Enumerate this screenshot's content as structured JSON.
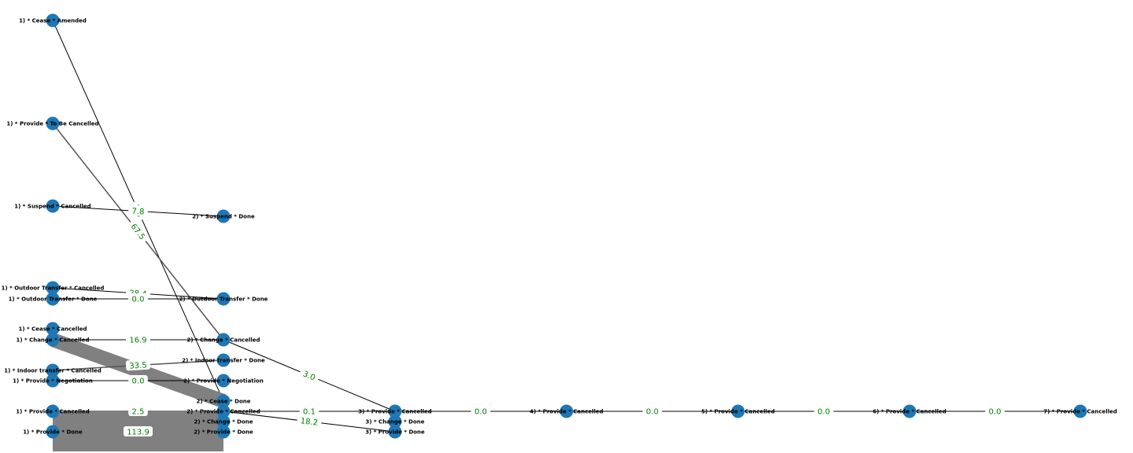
{
  "colors": {
    "node": "#1f77b4",
    "edge": "#000000",
    "label": "#008000",
    "thick_edge": "#808080"
  },
  "nodes": [
    {
      "id": "n1",
      "label": "1) * Cease * Amended"
    },
    {
      "id": "n2",
      "label": "1) * Provide * To Be Cancelled"
    },
    {
      "id": "n3",
      "label": "1) * Suspend * Cancelled"
    },
    {
      "id": "n4",
      "label": "1) * Outdoor Transfer * Cancelled"
    },
    {
      "id": "n5",
      "label": "1) * Outdoor Transfer * Done"
    },
    {
      "id": "n6",
      "label": "1) * Cease * Cancelled"
    },
    {
      "id": "n7",
      "label": "1) * Change * Cancelled"
    },
    {
      "id": "n8",
      "label": "1) * Indoor transfer * Cancelled"
    },
    {
      "id": "n9",
      "label": "1) * Provide * Negotiation"
    },
    {
      "id": "n10",
      "label": "1) * Provide * Cancelled"
    },
    {
      "id": "n11",
      "label": "1) * Provide * Done"
    },
    {
      "id": "m1",
      "label": "2) * Suspend * Done"
    },
    {
      "id": "m2",
      "label": "2) * Outdoor Transfer * Done"
    },
    {
      "id": "m3",
      "label": "2) * Change * Cancelled"
    },
    {
      "id": "m4",
      "label": "2) * Indoor transfer * Done"
    },
    {
      "id": "m5",
      "label": "2) * Provide * Negotiation"
    },
    {
      "id": "m6",
      "label": "2) * Cease * Done"
    },
    {
      "id": "m7",
      "label": "2) * Provide * Cancelled"
    },
    {
      "id": "m8",
      "label": "2) * Change * Done"
    },
    {
      "id": "m9",
      "label": "2) * Provide * Done"
    },
    {
      "id": "p1",
      "label": "3) * Provide * Cancelled"
    },
    {
      "id": "p2",
      "label": "3) * Change * Done"
    },
    {
      "id": "p3",
      "label": "3) * Provide * Done"
    },
    {
      "id": "q1",
      "label": "4) * Provide * Cancelled"
    },
    {
      "id": "r1",
      "label": "5) * Provide * Cancelled"
    },
    {
      "id": "s1",
      "label": "6) * Provide * Cancelled"
    },
    {
      "id": "t1",
      "label": "7) * Provide * Cancelled"
    }
  ],
  "edges": [
    {
      "from": "n1",
      "to": "m6",
      "label": "7.8",
      "weight": 1
    },
    {
      "from": "n2",
      "to": "m3",
      "label": "67.5",
      "weight": 1.5
    },
    {
      "from": "n3",
      "to": "m1",
      "label": "7.8",
      "weight": 1
    },
    {
      "from": "n4",
      "to": "m2",
      "label": "28.4",
      "weight": 1
    },
    {
      "from": "n5",
      "to": "m2",
      "label": "0.0",
      "weight": 1
    },
    {
      "from": "n7",
      "to": "m3",
      "label": "16.9",
      "weight": 1
    },
    {
      "from": "n7",
      "to": "m6",
      "label": "",
      "weight": 18
    },
    {
      "from": "n8",
      "to": "m4",
      "label": "33.5",
      "weight": 1.5
    },
    {
      "from": "n9",
      "to": "m5",
      "label": "0.0",
      "weight": 1
    },
    {
      "from": "n10",
      "to": "m7",
      "label": "2.5",
      "weight": 1
    },
    {
      "from": "n11",
      "to": "m9",
      "label": "113.9",
      "weight": 50
    },
    {
      "from": "m3",
      "to": "p1",
      "label": "3.0",
      "weight": 1
    },
    {
      "from": "m7",
      "to": "p1",
      "label": "0.1",
      "weight": 1
    },
    {
      "from": "m7",
      "to": "p3",
      "label": "18.2",
      "weight": 1
    },
    {
      "from": "p1",
      "to": "q1",
      "label": "0.0",
      "weight": 1
    },
    {
      "from": "q1",
      "to": "r1",
      "label": "0.0",
      "weight": 1
    },
    {
      "from": "r1",
      "to": "s1",
      "label": "0.0",
      "weight": 1
    },
    {
      "from": "s1",
      "to": "t1",
      "label": "0.0",
      "weight": 1
    }
  ]
}
